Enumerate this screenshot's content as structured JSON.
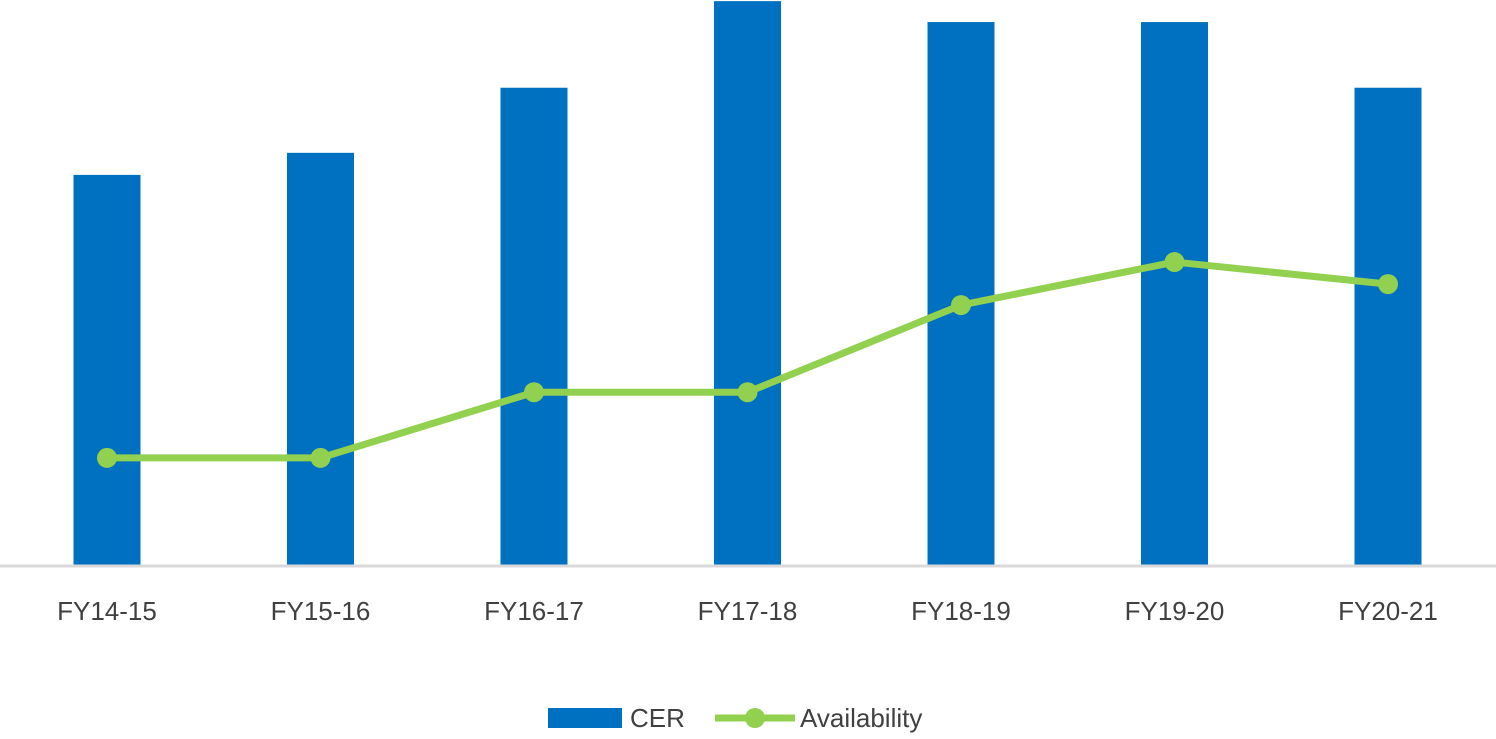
{
  "chart_data": {
    "type": "bar+line",
    "categories": [
      "FY14-15",
      "FY15-16",
      "FY16-17",
      "FY17-18",
      "FY18-19",
      "FY19-20",
      "FY20-21"
    ],
    "series": [
      {
        "name": "CER",
        "type": "bar",
        "color": "#0070C0",
        "values": [
          69.1,
          73.0,
          84.5,
          99.8,
          96.1,
          96.1,
          84.5
        ]
      },
      {
        "name": "Availability",
        "type": "line",
        "color": "#92D050",
        "values": [
          19.1,
          19.1,
          30.7,
          30.7,
          46.1,
          53.7,
          49.8
        ]
      }
    ],
    "title": "",
    "xlabel": "",
    "ylabel": "",
    "ylim": [
      0,
      100
    ],
    "y_axis_visible": false,
    "grid": false,
    "legend": "bottom"
  }
}
